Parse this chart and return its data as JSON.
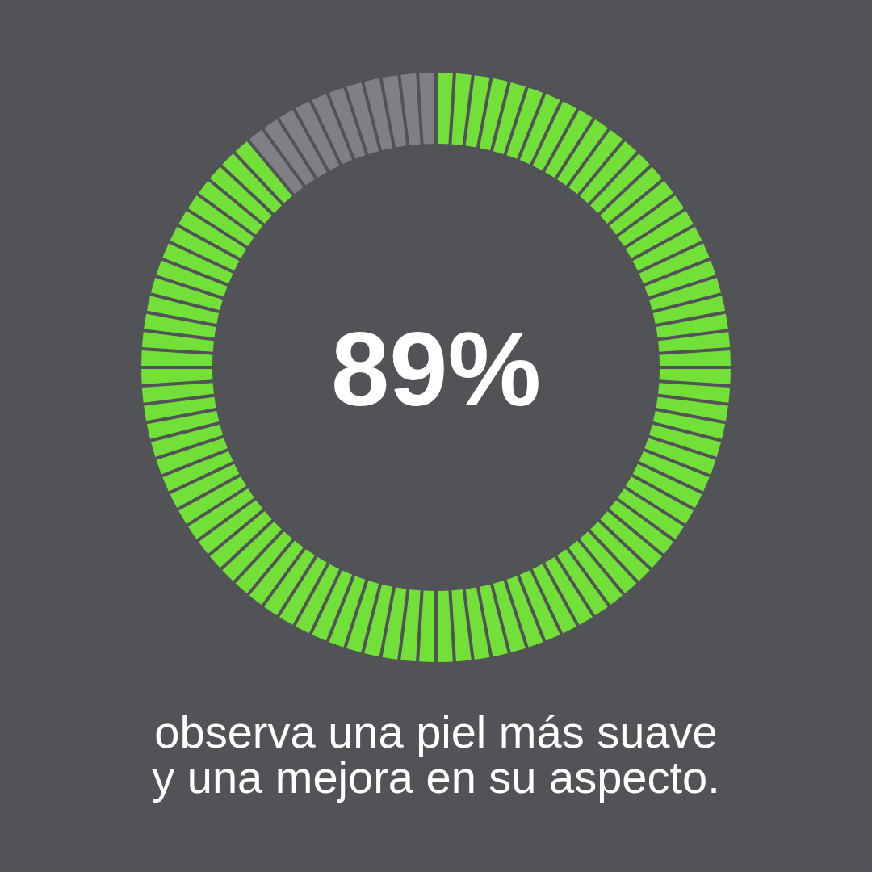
{
  "chart_data": {
    "type": "donut",
    "categories": [
      null,
      null
    ],
    "values": [
      89,
      11
    ],
    "colors": [
      "#72e038",
      "#7f8086"
    ],
    "value_labels": [
      "89%",
      null
    ],
    "annotations": [
      "observa una piel más suave y una mejora en su aspecto."
    ]
  }
}
